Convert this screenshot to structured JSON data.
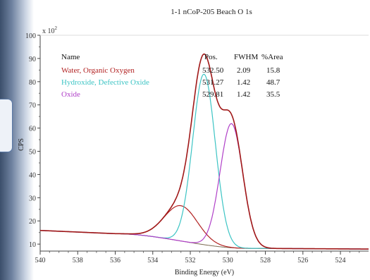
{
  "chart_data": {
    "type": "line",
    "title": "1-1 nCoP-205 Beach O 1s",
    "xlabel": "Binding Energy (eV)",
    "ylabel": "CPS",
    "y_multiplier_label": "x 10",
    "y_multiplier_exp": "2",
    "xlim": [
      540,
      522.5
    ],
    "ylim": [
      7,
      100
    ],
    "x_ticks": [
      "540",
      "538",
      "536",
      "534",
      "532",
      "530",
      "528",
      "526",
      "524"
    ],
    "y_ticks": [
      "10",
      "20",
      "30",
      "40",
      "50",
      "60",
      "70",
      "80",
      "90",
      "100"
    ],
    "legend_headers": {
      "name": "Name",
      "pos": "Pos.",
      "fwhm": "FWHM",
      "area": "%Area"
    },
    "components": [
      {
        "name": "Water, Organic Oxygen",
        "pos": "532.50",
        "fwhm": "2.09",
        "area": "15.8",
        "color": "#b22222",
        "center": 532.5,
        "width": 2.09,
        "height": 15.2
      },
      {
        "name": "Hydroxide, Defective Oxide",
        "pos": "531.27",
        "fwhm": "1.42",
        "area": "48.7",
        "color": "#3cc4c4",
        "center": 531.27,
        "width": 1.42,
        "height": 73.5
      },
      {
        "name": "Oxide",
        "pos": "529.81",
        "fwhm": "1.42",
        "area": "35.5",
        "color": "#b040c8",
        "center": 529.81,
        "width": 1.42,
        "height": 53.5
      }
    ],
    "background_color": "#7a6a50",
    "envelope_color": "#a01818",
    "background_levels": {
      "high_x": 536,
      "high": 14.5,
      "low_x": 529,
      "low": 8.2
    },
    "grid": false,
    "legend_position": "top-left"
  }
}
